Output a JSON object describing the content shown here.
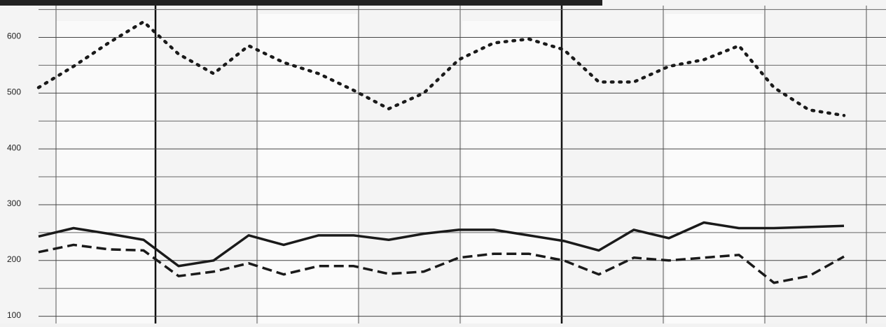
{
  "chart_data": {
    "type": "line",
    "categories": [
      null,
      null,
      null,
      null,
      null,
      null,
      null,
      null,
      null,
      null,
      null,
      null,
      null,
      null,
      null,
      null,
      null,
      null,
      null,
      null,
      null,
      null,
      null,
      null
    ],
    "series": [
      {
        "color": "#1a1a1a",
        "style": "dotted",
        "values": [
          510,
          548,
          590,
          628,
          570,
          535,
          585,
          555,
          535,
          505,
          472,
          500,
          560,
          590,
          597,
          578,
          520,
          520,
          548,
          560,
          585,
          510,
          470,
          460
        ]
      },
      {
        "color": "#1a1a1a",
        "style": "solid",
        "values": [
          243,
          258,
          248,
          237,
          190,
          200,
          245,
          228,
          245,
          245,
          237,
          248,
          255,
          255,
          245,
          235,
          218,
          255,
          240,
          268,
          258,
          258,
          260,
          262
        ]
      },
      {
        "color": "#1a1a1a",
        "style": "dashed",
        "values": [
          215,
          228,
          220,
          218,
          172,
          180,
          195,
          175,
          190,
          190,
          176,
          180,
          205,
          212,
          212,
          200,
          175,
          205,
          200,
          205,
          210,
          160,
          172,
          207
        ]
      }
    ],
    "ylim": [
      87,
      667
    ],
    "yticks": [
      100,
      200,
      300,
      400,
      500,
      600
    ],
    "minor_yticks": [
      150,
      250,
      350,
      450,
      550,
      650
    ],
    "grid": true
  }
}
